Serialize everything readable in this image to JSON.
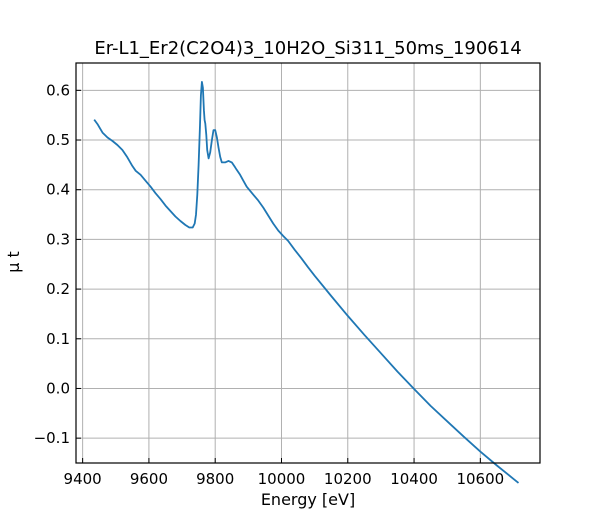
{
  "chart_data": {
    "type": "line",
    "title": "Er-L1_Er2(C2O4)3_10H2O_Si311_50ms_190614",
    "xlabel": "Energy [eV]",
    "ylabel": "μ t",
    "xlim": [
      9380,
      10780
    ],
    "ylim": [
      -0.15,
      0.655
    ],
    "xticks": [
      9400,
      9600,
      9800,
      10000,
      10200,
      10400,
      10600
    ],
    "yticks": [
      -0.1,
      0.0,
      0.1,
      0.2,
      0.3,
      0.4,
      0.5,
      0.6
    ],
    "ytick_labels": [
      "−0.1",
      "0.0",
      "0.1",
      "0.2",
      "0.3",
      "0.4",
      "0.5",
      "0.6"
    ],
    "grid": true,
    "line_color": "#1f77b4",
    "series": [
      {
        "x": [
          9435,
          9445,
          9460,
          9475,
          9490,
          9505,
          9520,
          9535,
          9550,
          9560,
          9575,
          9590,
          9605,
          9620,
          9635,
          9650,
          9665,
          9680,
          9695,
          9710,
          9722,
          9732,
          9738,
          9742,
          9746,
          9750,
          9754,
          9757,
          9760,
          9763,
          9766,
          9768,
          9770,
          9773,
          9776,
          9780,
          9785,
          9790,
          9795,
          9800,
          9805,
          9810,
          9815,
          9820,
          9830,
          9840,
          9850,
          9860,
          9865,
          9875,
          9885,
          9895,
          9905,
          9915,
          9930,
          9945,
          9960,
          9975,
          9990,
          10005,
          10020,
          10040,
          10060,
          10080,
          10100,
          10150,
          10200,
          10250,
          10300,
          10350,
          10400,
          10450,
          10500,
          10550,
          10600,
          10650,
          10700,
          10715
        ],
        "y": [
          0.541,
          0.532,
          0.515,
          0.505,
          0.498,
          0.49,
          0.48,
          0.465,
          0.448,
          0.438,
          0.43,
          0.418,
          0.406,
          0.393,
          0.381,
          0.368,
          0.357,
          0.346,
          0.337,
          0.329,
          0.324,
          0.324,
          0.332,
          0.35,
          0.39,
          0.45,
          0.53,
          0.59,
          0.617,
          0.605,
          0.56,
          0.54,
          0.533,
          0.51,
          0.48,
          0.463,
          0.475,
          0.5,
          0.52,
          0.52,
          0.505,
          0.485,
          0.466,
          0.455,
          0.455,
          0.458,
          0.455,
          0.445,
          0.44,
          0.43,
          0.418,
          0.406,
          0.398,
          0.39,
          0.378,
          0.364,
          0.348,
          0.332,
          0.318,
          0.307,
          0.297,
          0.279,
          0.262,
          0.244,
          0.227,
          0.186,
          0.146,
          0.108,
          0.071,
          0.034,
          -0.001,
          -0.035,
          -0.066,
          -0.097,
          -0.127,
          -0.155,
          -0.182,
          -0.19
        ]
      }
    ]
  }
}
